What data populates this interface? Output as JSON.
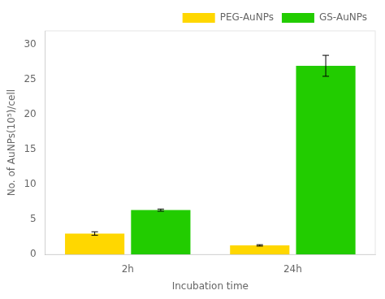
{
  "chart_data": {
    "type": "bar",
    "categories": [
      "2h",
      "24h"
    ],
    "series": [
      {
        "name": "PEG-AuNPs",
        "color": "#FFD700",
        "values": [
          3.0,
          1.3
        ],
        "errors": [
          0.25,
          0.1
        ]
      },
      {
        "name": "GS-AuNPs",
        "color": "#22CC00",
        "values": [
          6.35,
          27.0
        ],
        "errors": [
          0.15,
          1.5
        ]
      }
    ],
    "xlabel": "Incubation time",
    "ylabel": "No. of AuNPs(10⁵)/cell",
    "ylim": [
      0,
      32
    ],
    "yticks": [
      0,
      5,
      10,
      15,
      20,
      25,
      30
    ],
    "grid": false,
    "legend": "upper right"
  }
}
